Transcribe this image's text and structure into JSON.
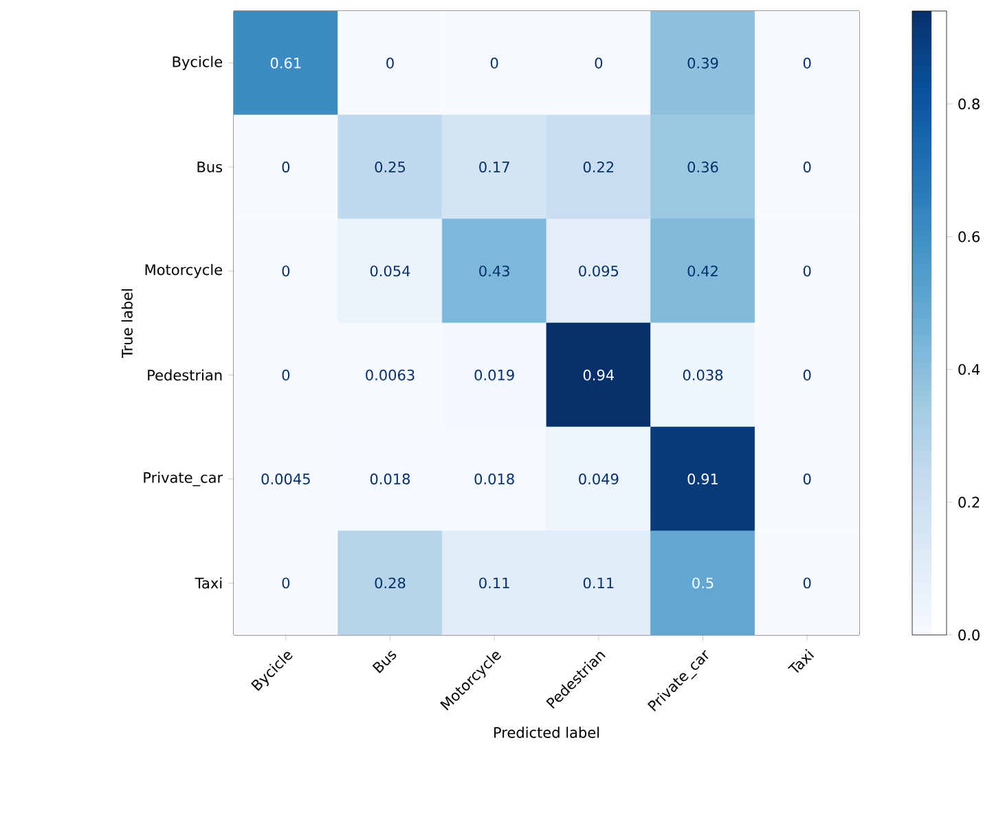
{
  "chart_data": {
    "type": "heatmap",
    "xlabel": "Predicted label",
    "ylabel": "True label",
    "categories": [
      "Bycicle",
      "Bus",
      "Motorcycle",
      "Pedestrian",
      "Private_car",
      "Taxi"
    ],
    "y_categories": [
      "Bycicle",
      "Bus",
      "Motorcycle",
      "Pedestrian",
      "Private_car",
      "Taxi"
    ],
    "cells": [
      [
        0.61,
        0,
        0,
        0,
        0.39,
        0
      ],
      [
        0,
        0.25,
        0.17,
        0.22,
        0.36,
        0
      ],
      [
        0,
        0.054,
        0.43,
        0.095,
        0.42,
        0
      ],
      [
        0,
        0.0063,
        0.019,
        0.94,
        0.038,
        0
      ],
      [
        0.0045,
        0.018,
        0.018,
        0.049,
        0.91,
        0
      ],
      [
        0,
        0.28,
        0.11,
        0.11,
        0.5,
        0
      ]
    ],
    "clim": [
      0,
      0.94
    ],
    "cticks": [
      {
        "value": 0,
        "label": "0.0"
      },
      {
        "value": 0.2,
        "label": "0.2"
      },
      {
        "value": 0.4,
        "label": "0.4"
      },
      {
        "value": 0.6,
        "label": "0.6"
      },
      {
        "value": 0.8,
        "label": "0.8"
      }
    ],
    "data_labels": true
  }
}
